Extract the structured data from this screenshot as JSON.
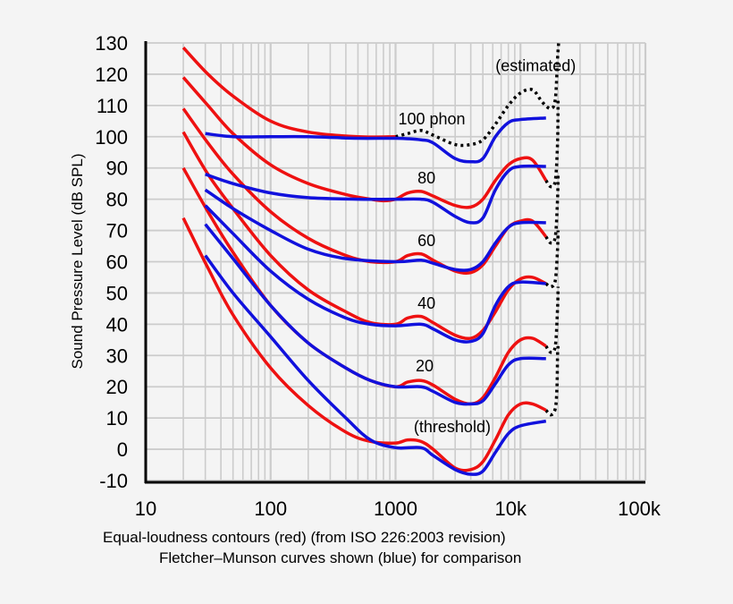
{
  "chart_data": {
    "type": "line",
    "xlabel": "",
    "ylabel": "Sound Pressure Level (dB SPL)",
    "x_scale": "log",
    "xlim": [
      10,
      100000
    ],
    "ylim": [
      -10,
      130
    ],
    "grid": true,
    "x_ticks": [
      {
        "v": 10,
        "label": "10"
      },
      {
        "v": 100,
        "label": "100"
      },
      {
        "v": 1000,
        "label": "1000"
      },
      {
        "v": 10000,
        "label": "10k"
      },
      {
        "v": 100000,
        "label": "100k"
      }
    ],
    "y_ticks": [
      130,
      120,
      110,
      100,
      90,
      80,
      70,
      60,
      50,
      40,
      30,
      20,
      10,
      0,
      -10
    ],
    "colors": {
      "iso": "#ee1111",
      "fletcher": "#1111dd",
      "estimated": "#000000"
    },
    "captions": [
      "Equal-loudness contours (red) (from ISO 226:2003 revision)",
      "Fletcher–Munson curves shown (blue) for comparison"
    ],
    "annotations": [
      {
        "text": "(estimated)",
        "x": 6300,
        "y": 121
      },
      {
        "text": "100 phon",
        "x": 1050,
        "y": 104
      },
      {
        "text": "80",
        "x": 1500,
        "y": 85
      },
      {
        "text": "60",
        "x": 1500,
        "y": 65
      },
      {
        "text": "40",
        "x": 1500,
        "y": 45
      },
      {
        "text": "20",
        "x": 1450,
        "y": 25
      },
      {
        "text": "(threshold)",
        "x": 1400,
        "y": 5.5
      }
    ],
    "red_series": [
      [
        [
          20,
          128.5
        ],
        [
          31.5,
          120
        ],
        [
          50,
          113
        ],
        [
          100,
          105
        ],
        [
          200,
          101.5
        ],
        [
          500,
          100
        ],
        [
          1000,
          100
        ]
      ],
      [
        [
          20,
          119
        ],
        [
          31.5,
          110
        ],
        [
          50,
          101
        ],
        [
          100,
          91
        ],
        [
          200,
          85
        ],
        [
          400,
          81.5
        ],
        [
          630,
          80
        ],
        [
          800,
          79.5
        ],
        [
          1000,
          80
        ],
        [
          1250,
          82
        ],
        [
          1600,
          82.5
        ],
        [
          2000,
          81
        ],
        [
          3000,
          78
        ],
        [
          4000,
          77.5
        ],
        [
          5000,
          80
        ],
        [
          6300,
          86
        ],
        [
          8000,
          91
        ],
        [
          10000,
          93
        ],
        [
          12500,
          92.5
        ],
        [
          16000,
          86
        ]
      ],
      [
        [
          20,
          109
        ],
        [
          31.5,
          98
        ],
        [
          50,
          88
        ],
        [
          100,
          76
        ],
        [
          200,
          67.5
        ],
        [
          400,
          62
        ],
        [
          630,
          60
        ],
        [
          1000,
          60
        ],
        [
          1250,
          62
        ],
        [
          1600,
          62.5
        ],
        [
          2000,
          60.5
        ],
        [
          3000,
          57
        ],
        [
          4000,
          56.5
        ],
        [
          5000,
          59
        ],
        [
          6300,
          65
        ],
        [
          8000,
          71
        ],
        [
          10000,
          73
        ],
        [
          12500,
          73
        ],
        [
          16000,
          68
        ]
      ],
      [
        [
          20,
          101.5
        ],
        [
          31.5,
          88
        ],
        [
          50,
          77
        ],
        [
          100,
          62
        ],
        [
          200,
          51
        ],
        [
          400,
          44
        ],
        [
          630,
          40.5
        ],
        [
          1000,
          40
        ],
        [
          1250,
          42
        ],
        [
          1600,
          42.5
        ],
        [
          2000,
          40.5
        ],
        [
          3000,
          36.5
        ],
        [
          4000,
          35.5
        ],
        [
          5000,
          38
        ],
        [
          6300,
          44
        ],
        [
          8000,
          51
        ],
        [
          10000,
          54.5
        ],
        [
          12500,
          55
        ],
        [
          16000,
          53
        ]
      ],
      [
        [
          20,
          90
        ],
        [
          31.5,
          76
        ],
        [
          50,
          63
        ],
        [
          100,
          46
        ],
        [
          200,
          34
        ],
        [
          400,
          26
        ],
        [
          630,
          22
        ],
        [
          1000,
          20
        ],
        [
          1250,
          21.5
        ],
        [
          1600,
          22
        ],
        [
          2000,
          20.5
        ],
        [
          3000,
          16
        ],
        [
          4000,
          14.5
        ],
        [
          5000,
          16.5
        ],
        [
          6300,
          23
        ],
        [
          8000,
          31
        ],
        [
          10000,
          35
        ],
        [
          12500,
          35.5
        ],
        [
          16000,
          33
        ]
      ],
      [
        [
          20,
          74
        ],
        [
          31.5,
          58
        ],
        [
          50,
          43
        ],
        [
          100,
          26
        ],
        [
          200,
          14
        ],
        [
          400,
          5.5
        ],
        [
          630,
          2.5
        ],
        [
          1000,
          2
        ],
        [
          1250,
          3
        ],
        [
          1600,
          2.5
        ],
        [
          2000,
          0
        ],
        [
          3000,
          -6
        ],
        [
          4000,
          -6.5
        ],
        [
          5000,
          -4
        ],
        [
          6300,
          3
        ],
        [
          8000,
          11
        ],
        [
          10000,
          14.5
        ],
        [
          12500,
          14.5
        ],
        [
          16000,
          12.5
        ]
      ]
    ],
    "blue_series": [
      [
        [
          30,
          101
        ],
        [
          50,
          100
        ],
        [
          100,
          100
        ],
        [
          200,
          100
        ],
        [
          500,
          99.5
        ],
        [
          1000,
          99.5
        ],
        [
          1600,
          99
        ],
        [
          2000,
          98
        ],
        [
          3000,
          93
        ],
        [
          4000,
          92
        ],
        [
          5000,
          93
        ],
        [
          6300,
          100
        ],
        [
          8000,
          104.5
        ],
        [
          10000,
          105.5
        ],
        [
          16000,
          106
        ]
      ],
      [
        [
          30,
          88
        ],
        [
          50,
          85
        ],
        [
          100,
          82
        ],
        [
          200,
          80.5
        ],
        [
          500,
          80
        ],
        [
          1000,
          80
        ],
        [
          1600,
          80
        ],
        [
          2000,
          79
        ],
        [
          3000,
          74.5
        ],
        [
          4000,
          72.5
        ],
        [
          5000,
          74
        ],
        [
          6300,
          83
        ],
        [
          8000,
          89
        ],
        [
          10000,
          90.5
        ],
        [
          16000,
          90.5
        ]
      ],
      [
        [
          30,
          83
        ],
        [
          50,
          77
        ],
        [
          100,
          70
        ],
        [
          200,
          64
        ],
        [
          400,
          61
        ],
        [
          1000,
          60
        ],
        [
          1600,
          60.5
        ],
        [
          2000,
          59.5
        ],
        [
          3000,
          57.5
        ],
        [
          4000,
          57.5
        ],
        [
          5000,
          60
        ],
        [
          6300,
          66
        ],
        [
          8000,
          71
        ],
        [
          10000,
          72.5
        ],
        [
          16000,
          72.5
        ]
      ],
      [
        [
          30,
          78
        ],
        [
          50,
          69
        ],
        [
          100,
          57
        ],
        [
          200,
          48
        ],
        [
          400,
          42
        ],
        [
          630,
          40
        ],
        [
          1000,
          39.5
        ],
        [
          1600,
          40
        ],
        [
          2000,
          38.5
        ],
        [
          3000,
          35
        ],
        [
          4000,
          34.5
        ],
        [
          5000,
          37
        ],
        [
          6300,
          46
        ],
        [
          8000,
          52
        ],
        [
          10000,
          53.5
        ],
        [
          16000,
          53
        ]
      ],
      [
        [
          30,
          72
        ],
        [
          50,
          61
        ],
        [
          100,
          46
        ],
        [
          200,
          34
        ],
        [
          400,
          26
        ],
        [
          630,
          22
        ],
        [
          1000,
          20
        ],
        [
          1600,
          20
        ],
        [
          2000,
          18.5
        ],
        [
          3000,
          15
        ],
        [
          4000,
          14.5
        ],
        [
          5000,
          15.5
        ],
        [
          6300,
          21
        ],
        [
          8000,
          27
        ],
        [
          10000,
          29
        ],
        [
          16000,
          29
        ]
      ],
      [
        [
          30,
          62
        ],
        [
          50,
          50
        ],
        [
          100,
          36
        ],
        [
          200,
          22
        ],
        [
          400,
          10
        ],
        [
          630,
          3
        ],
        [
          1000,
          0.5
        ],
        [
          1600,
          0.5
        ],
        [
          2000,
          -2
        ],
        [
          3000,
          -6.5
        ],
        [
          4000,
          -8
        ],
        [
          5000,
          -7
        ],
        [
          6300,
          -1
        ],
        [
          8000,
          5
        ],
        [
          10000,
          7.5
        ],
        [
          16000,
          9
        ]
      ]
    ],
    "estimated_series": [
      [
        [
          1000,
          100
        ],
        [
          1250,
          101
        ],
        [
          1600,
          102
        ],
        [
          2000,
          100.5
        ],
        [
          3000,
          97.5
        ],
        [
          4000,
          97.5
        ],
        [
          5000,
          99
        ],
        [
          6300,
          104
        ],
        [
          8000,
          110
        ],
        [
          10000,
          114
        ],
        [
          12500,
          115
        ],
        [
          15000,
          111
        ],
        [
          17500,
          109
        ],
        [
          19000,
          112
        ],
        [
          19800,
          125
        ],
        [
          20200,
          130
        ]
      ],
      [
        [
          16000,
          86
        ],
        [
          17500,
          84
        ],
        [
          19000,
          86
        ],
        [
          19800,
          98
        ],
        [
          20000,
          112
        ]
      ],
      [
        [
          16000,
          68
        ],
        [
          17500,
          66
        ],
        [
          19000,
          68
        ],
        [
          19800,
          80
        ],
        [
          20000,
          88
        ]
      ],
      [
        [
          16000,
          53
        ],
        [
          17500,
          52
        ],
        [
          19000,
          54
        ],
        [
          19800,
          64
        ],
        [
          20000,
          70
        ]
      ],
      [
        [
          16000,
          33
        ],
        [
          17500,
          31
        ],
        [
          19000,
          33
        ],
        [
          19800,
          45
        ],
        [
          20000,
          52
        ]
      ],
      [
        [
          16000,
          12.5
        ],
        [
          17500,
          11
        ],
        [
          19000,
          13
        ],
        [
          19600,
          20
        ],
        [
          19800,
          30
        ],
        [
          20000,
          33
        ]
      ]
    ]
  }
}
